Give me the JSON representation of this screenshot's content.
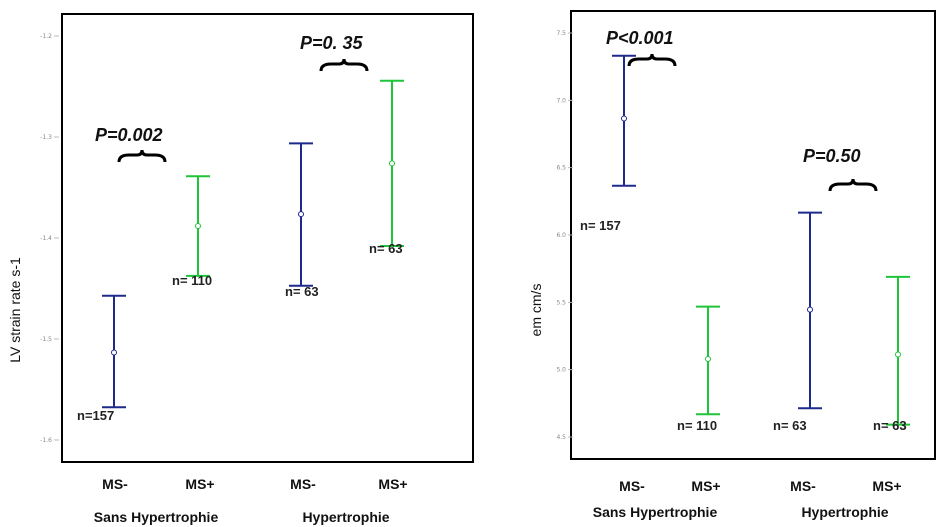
{
  "colors": {
    "ms_minus": "#1c2a8c",
    "ms_plus": "#1fc43a"
  },
  "chart_data": [
    {
      "type": "errorbar",
      "ylabel": "LV strain rate s-1",
      "ylim": [
        -1.6,
        -1.15
      ],
      "y_ticks": [
        "-1.2",
        "-1.3",
        "-1.4",
        "-1.5",
        "-1.6"
      ],
      "categories": [
        "MS-",
        "MS+",
        "MS-",
        "MS+"
      ],
      "groups": [
        "Sans Hypertrophie",
        "Hypertrophie"
      ],
      "bars": [
        {
          "label": "MS-",
          "group": "Sans Hypertrophie",
          "series": "ms_minus",
          "mean": -1.49,
          "low": -1.545,
          "high": -1.433,
          "n": "n=157"
        },
        {
          "label": "MS+",
          "group": "Sans Hypertrophie",
          "series": "ms_plus",
          "mean": -1.363,
          "low": -1.413,
          "high": -1.313,
          "n": "n= 110"
        },
        {
          "label": "MS-",
          "group": "Hypertrophie",
          "series": "ms_minus",
          "mean": -1.351,
          "low": -1.423,
          "high": -1.28,
          "n": "n= 63"
        },
        {
          "label": "MS+",
          "group": "Hypertrophie",
          "series": "ms_plus",
          "mean": -1.3,
          "low": -1.383,
          "high": -1.217,
          "n": "n= 63"
        }
      ],
      "annotations": [
        "P=0.002",
        "P=0. 35"
      ]
    },
    {
      "type": "errorbar",
      "ylabel": "em cm/s",
      "ylim": [
        4.5,
        7.5
      ],
      "y_ticks": [
        "7.5",
        "7.0",
        "6.5",
        "6.0",
        "5.5",
        "5.0",
        "4.5"
      ],
      "categories": [
        "MS-",
        "MS+",
        "MS-",
        "MS+"
      ],
      "groups": [
        "Sans Hypertrophie",
        "Hypertrophie"
      ],
      "bars": [
        {
          "label": "MS-",
          "group": "Sans Hypertrophie",
          "series": "ms_minus",
          "mean": 6.78,
          "low": 6.33,
          "high": 7.2,
          "n": "n= 157"
        },
        {
          "label": "MS+",
          "group": "Sans Hypertrophie",
          "series": "ms_plus",
          "mean": 5.17,
          "low": 4.8,
          "high": 5.52,
          "n": "n= 110"
        },
        {
          "label": "MS-",
          "group": "Hypertrophie",
          "series": "ms_minus",
          "mean": 5.5,
          "low": 4.84,
          "high": 6.15,
          "n": "n= 63"
        },
        {
          "label": "MS+",
          "group": "Hypertrophie",
          "series": "ms_plus",
          "mean": 5.2,
          "low": 4.73,
          "high": 5.72,
          "n": "n= 63"
        }
      ],
      "annotations": [
        "P<0.001",
        "P=0.50"
      ]
    }
  ]
}
